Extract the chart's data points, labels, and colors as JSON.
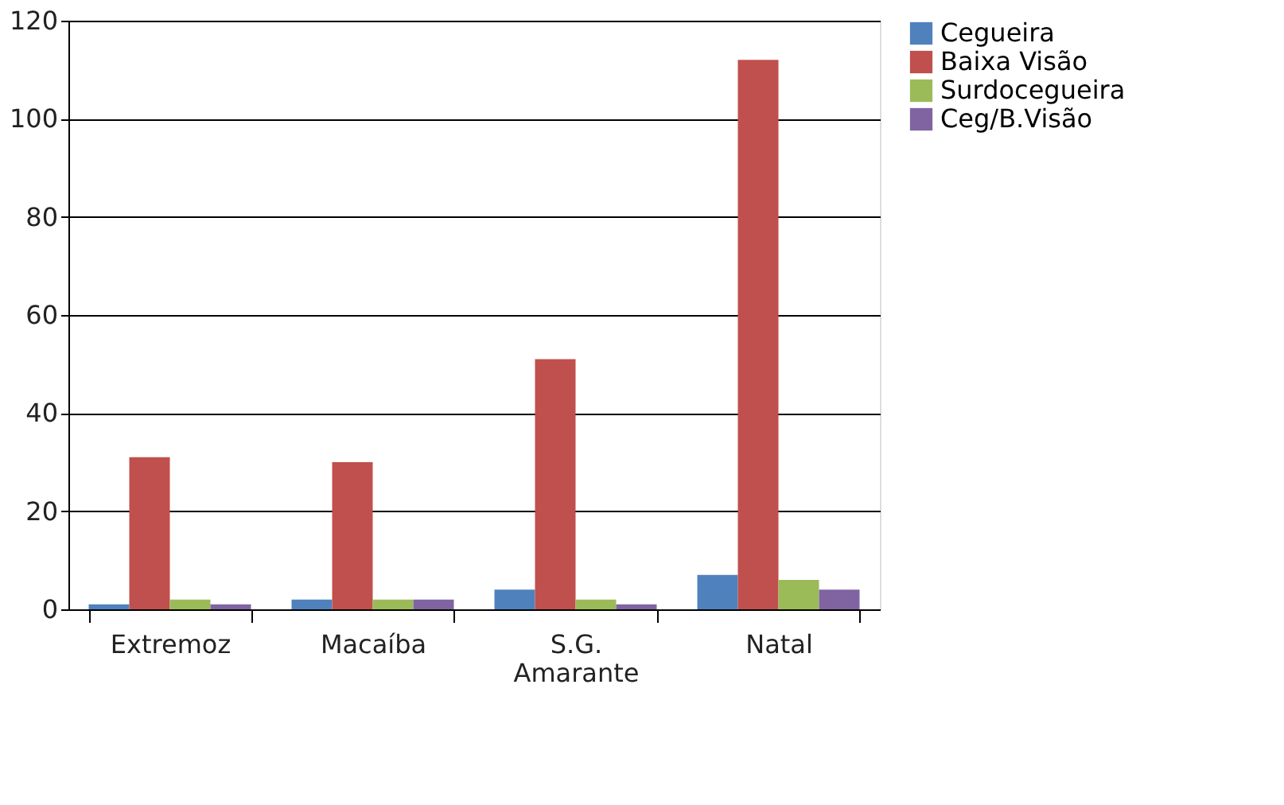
{
  "chart_data": {
    "type": "bar",
    "categories": [
      "Extremoz",
      "Macaíba",
      "S.G. Amarante",
      "Natal"
    ],
    "series": [
      {
        "name": "Cegueira",
        "color": "#4f81bd",
        "values": [
          1,
          2,
          4,
          7
        ]
      },
      {
        "name": "Baixa Visão",
        "color": "#c0504d",
        "values": [
          31,
          30,
          51,
          112
        ]
      },
      {
        "name": "Surdocegueira",
        "color": "#9bbb59",
        "values": [
          2,
          2,
          2,
          6
        ]
      },
      {
        "name": "Ceg/B.Visão",
        "color": "#8064a2",
        "values": [
          1,
          2,
          1,
          4
        ]
      }
    ],
    "ylim": [
      0,
      120
    ],
    "yticks": [
      0,
      20,
      40,
      60,
      80,
      100,
      120
    ],
    "grid": "y",
    "legend": "right"
  }
}
